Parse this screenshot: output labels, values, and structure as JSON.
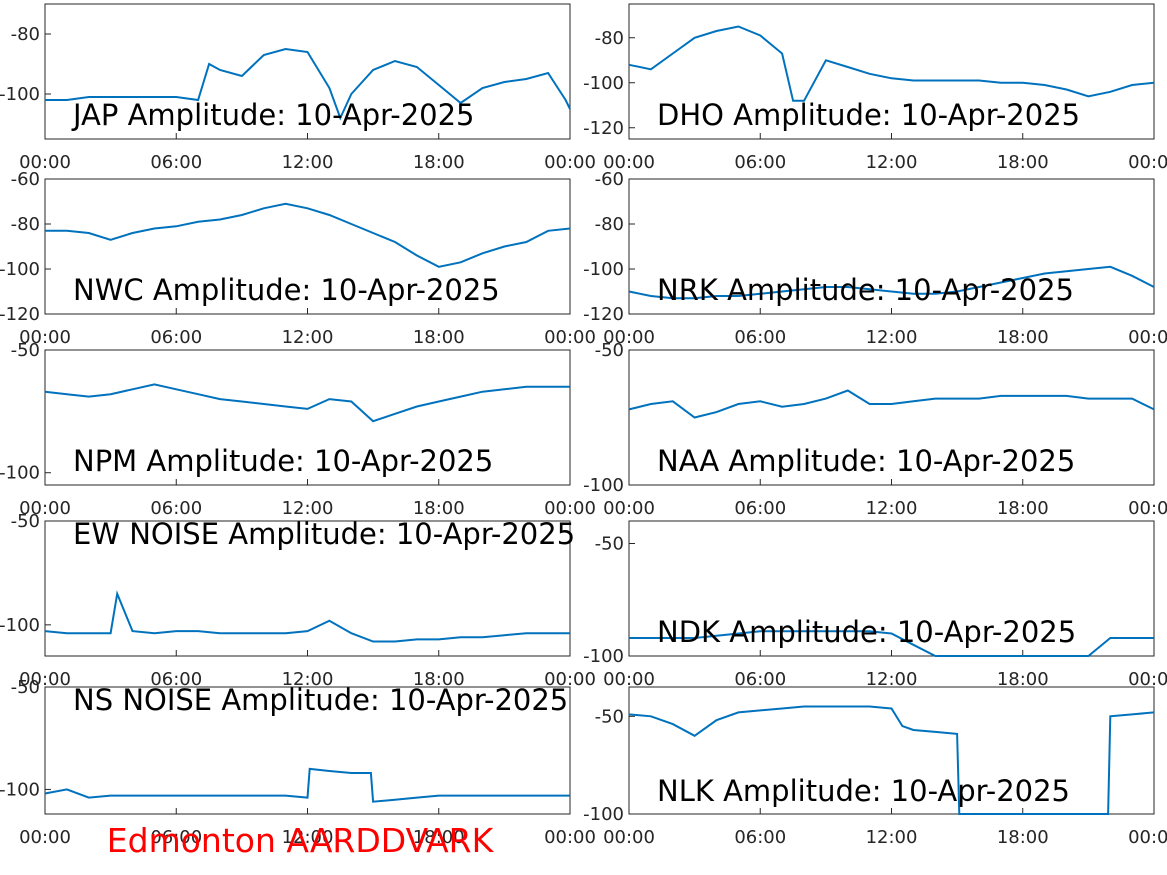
{
  "footer": {
    "station_label": "Edmonton AARDDVARK",
    "station_color": "#ff0000"
  },
  "style": {
    "line_color": "#0072bd",
    "axis_color": "#262626"
  },
  "chart_data": [
    {
      "type": "line",
      "title": "JAP Amplitude: 10-Apr-2025",
      "xticks": [
        "00:00",
        "06:00",
        "12:00",
        "18:00",
        "00:00"
      ],
      "yticks": [
        -80,
        -100
      ],
      "ylim": [
        -115,
        -70
      ],
      "series": [
        {
          "x": [
            0,
            1,
            2,
            3,
            4,
            5,
            6,
            7,
            7.5,
            8,
            9,
            10,
            11,
            12,
            13,
            13.5,
            14,
            15,
            16,
            17,
            18,
            19,
            20,
            21,
            22,
            23,
            23.8,
            24
          ],
          "y": [
            -102,
            -102,
            -101,
            -101,
            -101,
            -101,
            -101,
            -102,
            -90,
            -92,
            -94,
            -87,
            -85,
            -86,
            -98,
            -108,
            -100,
            -92,
            -89,
            -91,
            -97,
            -103,
            -98,
            -96,
            -95,
            -93,
            -102,
            -105
          ]
        }
      ]
    },
    {
      "type": "line",
      "title": "DHO Amplitude: 10-Apr-2025",
      "xticks": [
        "00:00",
        "06:00",
        "12:00",
        "18:00",
        "00:00"
      ],
      "yticks": [
        -80,
        -100,
        -120
      ],
      "ylim": [
        -125,
        -65
      ],
      "series": [
        {
          "x": [
            0,
            1,
            2,
            3,
            4,
            5,
            6,
            7,
            7.5,
            8,
            9,
            10,
            11,
            12,
            13,
            14,
            15,
            16,
            17,
            18,
            19,
            20,
            21,
            22,
            23,
            24
          ],
          "y": [
            -92,
            -94,
            -87,
            -80,
            -77,
            -75,
            -79,
            -87,
            -108,
            -108,
            -90,
            -93,
            -96,
            -98,
            -99,
            -99,
            -99,
            -99,
            -100,
            -100,
            -101,
            -103,
            -106,
            -104,
            -101,
            -100
          ]
        }
      ]
    },
    {
      "type": "line",
      "title": "NWC Amplitude: 10-Apr-2025",
      "xticks": [
        "00:00",
        "06:00",
        "12:00",
        "18:00",
        "00:00"
      ],
      "yticks": [
        -60,
        -80,
        -100,
        -120
      ],
      "ylim": [
        -120,
        -60
      ],
      "series": [
        {
          "x": [
            0,
            1,
            2,
            3,
            4,
            5,
            6,
            7,
            8,
            9,
            10,
            11,
            12,
            13,
            14,
            15,
            16,
            17,
            18,
            19,
            20,
            21,
            22,
            23,
            24
          ],
          "y": [
            -83,
            -83,
            -84,
            -87,
            -84,
            -82,
            -81,
            -79,
            -78,
            -76,
            -73,
            -71,
            -73,
            -76,
            -80,
            -84,
            -88,
            -94,
            -99,
            -97,
            -93,
            -90,
            -88,
            -83,
            -82
          ]
        }
      ]
    },
    {
      "type": "line",
      "title": "NRK Amplitude: 10-Apr-2025",
      "xticks": [
        "00:00",
        "06:00",
        "12:00",
        "18:00",
        "00:00"
      ],
      "yticks": [
        -60,
        -80,
        -100,
        -120
      ],
      "ylim": [
        -120,
        -60
      ],
      "series": [
        {
          "x": [
            0,
            1,
            2,
            3,
            4,
            5,
            6,
            7,
            8,
            9,
            10,
            11,
            12,
            13,
            14,
            15,
            16,
            17,
            18,
            19,
            20,
            21,
            22,
            23,
            24
          ],
          "y": [
            -110,
            -112,
            -113,
            -113,
            -112,
            -112,
            -111,
            -110,
            -109,
            -108,
            -108,
            -109,
            -110,
            -111,
            -111,
            -110,
            -108,
            -106,
            -104,
            -102,
            -101,
            -100,
            -99,
            -103,
            -108
          ]
        }
      ]
    },
    {
      "type": "line",
      "title": "NPM Amplitude: 10-Apr-2025",
      "xticks": [
        "00:00",
        "06:00",
        "12:00",
        "18:00",
        "00:00"
      ],
      "yticks": [
        -50,
        -100
      ],
      "ylim": [
        -105,
        -50
      ],
      "series": [
        {
          "x": [
            0,
            1,
            2,
            3,
            4,
            5,
            6,
            7,
            8,
            9,
            10,
            11,
            12,
            13,
            14,
            15,
            16,
            17,
            18,
            19,
            20,
            21,
            22,
            23,
            24
          ],
          "y": [
            -67,
            -68,
            -69,
            -68,
            -66,
            -64,
            -66,
            -68,
            -70,
            -71,
            -72,
            -73,
            -74,
            -70,
            -71,
            -79,
            -76,
            -73,
            -71,
            -69,
            -67,
            -66,
            -65,
            -65,
            -65
          ]
        }
      ]
    },
    {
      "type": "line",
      "title": "NAA Amplitude: 10-Apr-2025",
      "xticks": [
        "00:00",
        "06:00",
        "12:00",
        "18:00",
        "00:00"
      ],
      "yticks": [
        -50,
        -100
      ],
      "ylim": [
        -100,
        -50
      ],
      "series": [
        {
          "x": [
            0,
            1,
            2,
            3,
            4,
            5,
            6,
            7,
            8,
            9,
            10,
            11,
            12,
            13,
            14,
            15,
            16,
            17,
            18,
            19,
            20,
            21,
            22,
            23,
            24
          ],
          "y": [
            -72,
            -70,
            -69,
            -75,
            -73,
            -70,
            -69,
            -71,
            -70,
            -68,
            -65,
            -70,
            -70,
            -69,
            -68,
            -68,
            -68,
            -67,
            -67,
            -67,
            -67,
            -68,
            -68,
            -68,
            -72
          ]
        }
      ]
    },
    {
      "type": "line",
      "title": "EW NOISE Amplitude: 10-Apr-2025",
      "xticks": [
        "00:00",
        "06:00",
        "12:00",
        "18:00",
        "00:00"
      ],
      "yticks": [
        -50,
        -100
      ],
      "ylim": [
        -115,
        -50
      ],
      "series": [
        {
          "x": [
            0,
            1,
            2,
            3,
            3.3,
            4,
            5,
            6,
            7,
            8,
            9,
            10,
            11,
            12,
            13,
            14,
            15,
            16,
            17,
            18,
            19,
            20,
            21,
            22,
            23,
            24
          ],
          "y": [
            -103,
            -104,
            -104,
            -104,
            -85,
            -103,
            -104,
            -103,
            -103,
            -104,
            -104,
            -104,
            -104,
            -103,
            -98,
            -104,
            -108,
            -108,
            -107,
            -107,
            -106,
            -106,
            -105,
            -104,
            -104,
            -104
          ]
        }
      ]
    },
    {
      "type": "line",
      "title": "NDK Amplitude: 10-Apr-2025",
      "xticks": [
        "00:00",
        "06:00",
        "12:00",
        "18:00",
        "00:00"
      ],
      "yticks": [
        -50,
        -100
      ],
      "ylim": [
        -100,
        -40
      ],
      "series": [
        {
          "x": [
            0,
            1,
            2,
            3,
            4,
            5,
            6,
            7,
            8,
            9,
            10,
            11,
            12,
            13,
            14,
            15,
            16,
            17,
            18,
            19,
            20,
            21,
            22,
            23,
            24
          ],
          "y": [
            -92,
            -92,
            -92,
            -92,
            -91,
            -90,
            -89,
            -89,
            -89,
            -89,
            -89,
            -89,
            -90,
            -95,
            -100,
            -100,
            -100,
            -100,
            -100,
            -100,
            -100,
            -100,
            -92,
            -92,
            -92
          ]
        }
      ]
    },
    {
      "type": "line",
      "title": "NS NOISE Amplitude: 10-Apr-2025",
      "xticks": [
        "00:00",
        "06:00",
        "12:00",
        "18:00",
        "00:00"
      ],
      "yticks": [
        -50,
        -100
      ],
      "ylim": [
        -112,
        -50
      ],
      "series": [
        {
          "x": [
            0,
            1,
            2,
            3,
            4,
            5,
            6,
            7,
            8,
            9,
            10,
            11,
            12,
            12.1,
            13,
            14,
            14.9,
            15,
            16,
            17,
            18,
            19,
            20,
            21,
            22,
            23,
            24
          ],
          "y": [
            -102,
            -100,
            -104,
            -103,
            -103,
            -103,
            -103,
            -103,
            -103,
            -103,
            -103,
            -103,
            -104,
            -90,
            -91,
            -92,
            -92,
            -106,
            -105,
            -104,
            -103,
            -103,
            -103,
            -103,
            -103,
            -103,
            -103
          ]
        }
      ]
    },
    {
      "type": "line",
      "title": "NLK Amplitude: 10-Apr-2025",
      "xticks": [
        "00:00",
        "06:00",
        "12:00",
        "18:00",
        "00:00"
      ],
      "yticks": [
        -50,
        -100
      ],
      "ylim": [
        -100,
        -35
      ],
      "series": [
        {
          "x": [
            0,
            1,
            2,
            3,
            4,
            5,
            6,
            7,
            8,
            9,
            10,
            11,
            12,
            12.5,
            13,
            14,
            15,
            15.1,
            21.9,
            22,
            23,
            24
          ],
          "y": [
            -49,
            -50,
            -54,
            -60,
            -52,
            -48,
            -47,
            -46,
            -45,
            -45,
            -45,
            -45,
            -46,
            -55,
            -57,
            -58,
            -59,
            -100,
            -100,
            -50,
            -49,
            -48
          ]
        }
      ]
    }
  ]
}
